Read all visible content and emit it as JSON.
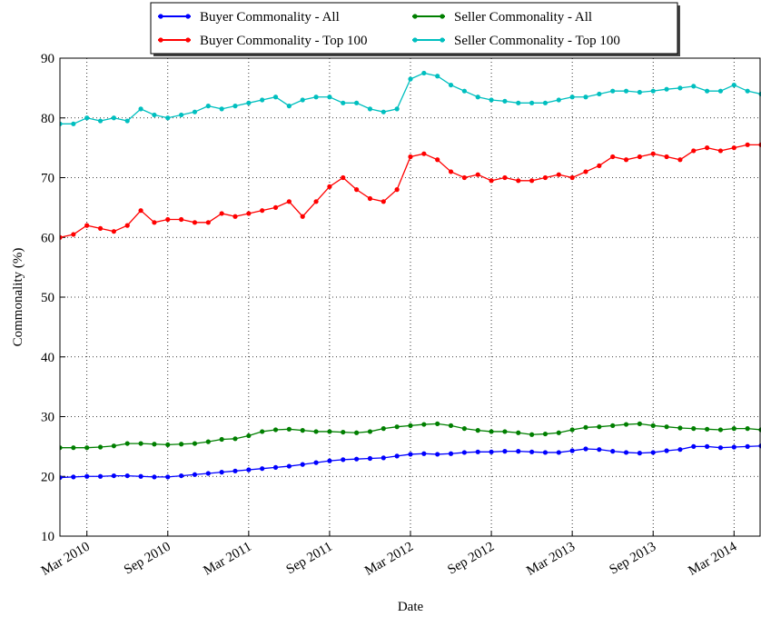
{
  "chart_data": {
    "type": "line",
    "xlabel": "Date",
    "ylabel": "Commonality (%)",
    "x": [
      "2010-01",
      "2010-02",
      "2010-03",
      "2010-04",
      "2010-05",
      "2010-06",
      "2010-07",
      "2010-08",
      "2010-09",
      "2010-10",
      "2010-11",
      "2010-12",
      "2011-01",
      "2011-02",
      "2011-03",
      "2011-04",
      "2011-05",
      "2011-06",
      "2011-07",
      "2011-08",
      "2011-09",
      "2011-10",
      "2011-11",
      "2011-12",
      "2012-01",
      "2012-02",
      "2012-03",
      "2012-04",
      "2012-05",
      "2012-06",
      "2012-07",
      "2012-08",
      "2012-09",
      "2012-10",
      "2012-11",
      "2012-12",
      "2013-01",
      "2013-02",
      "2013-03",
      "2013-04",
      "2013-05",
      "2013-06",
      "2013-07",
      "2013-08",
      "2013-09",
      "2013-10",
      "2013-11",
      "2013-12",
      "2014-01",
      "2014-02",
      "2014-03",
      "2014-04",
      "2014-05"
    ],
    "series": [
      {
        "name": "Buyer Commonality - All",
        "color": "#0000ff",
        "values": [
          19.8,
          19.9,
          20,
          20,
          20.1,
          20.1,
          20,
          19.9,
          19.9,
          20.1,
          20.3,
          20.5,
          20.7,
          20.9,
          21.1,
          21.3,
          21.5,
          21.7,
          22,
          22.3,
          22.6,
          22.8,
          22.9,
          23,
          23.1,
          23.4,
          23.7,
          23.8,
          23.7,
          23.8,
          24,
          24.1,
          24.1,
          24.2,
          24.2,
          24.1,
          24,
          24,
          24.3,
          24.6,
          24.5,
          24.2,
          24,
          23.9,
          24,
          24.3,
          24.5,
          25,
          25,
          24.8,
          24.9,
          25,
          25.1
        ]
      },
      {
        "name": "Buyer Commonality - Top 100",
        "color": "#ff0000",
        "values": [
          60,
          60.5,
          62,
          61.5,
          61,
          62,
          64.5,
          62.5,
          63,
          63,
          62.5,
          62.5,
          64,
          63.5,
          64,
          64.5,
          65,
          66,
          63.5,
          66,
          68.5,
          70,
          68,
          66.5,
          66,
          68,
          73.5,
          74,
          73,
          71,
          70,
          70.5,
          69.5,
          70,
          69.5,
          69.5,
          70,
          70.5,
          70,
          71,
          72,
          73.5,
          73,
          73.5,
          74,
          73.5,
          73,
          74.5,
          75,
          74.5,
          75,
          75.5,
          75.5
        ]
      },
      {
        "name": "Seller Commonality - All",
        "color": "#007f00",
        "values": [
          24.8,
          24.8,
          24.8,
          24.9,
          25.1,
          25.5,
          25.5,
          25.4,
          25.3,
          25.4,
          25.5,
          25.8,
          26.2,
          26.3,
          26.8,
          27.5,
          27.8,
          27.9,
          27.7,
          27.5,
          27.5,
          27.4,
          27.3,
          27.5,
          28,
          28.3,
          28.5,
          28.7,
          28.8,
          28.5,
          28,
          27.7,
          27.5,
          27.5,
          27.3,
          27,
          27.1,
          27.3,
          27.8,
          28.2,
          28.3,
          28.5,
          28.7,
          28.8,
          28.5,
          28.3,
          28.1,
          28,
          27.9,
          27.8,
          28,
          28,
          27.8
        ]
      },
      {
        "name": "Seller Commonality - Top 100",
        "color": "#00bfbf",
        "values": [
          79,
          79,
          80,
          79.5,
          80,
          79.5,
          81.5,
          80.5,
          80,
          80.5,
          81,
          82,
          81.5,
          82,
          82.5,
          83,
          83.5,
          82,
          83,
          83.5,
          83.5,
          82.5,
          82.5,
          81.5,
          81,
          81.5,
          86.5,
          87.5,
          87,
          85.5,
          84.5,
          83.5,
          83,
          82.8,
          82.5,
          82.5,
          82.5,
          83,
          83.5,
          83.5,
          84,
          84.5,
          84.5,
          84.3,
          84.5,
          84.8,
          85,
          85.3,
          84.5,
          84.5,
          85.5,
          84.5,
          84
        ]
      }
    ],
    "xlim": [
      "2010-01",
      "2014-05"
    ],
    "xticks": [
      {
        "value": "2010-03",
        "label": "Mar 2010"
      },
      {
        "value": "2010-09",
        "label": "Sep 2010"
      },
      {
        "value": "2011-03",
        "label": "Mar 2011"
      },
      {
        "value": "2011-09",
        "label": "Sep 2011"
      },
      {
        "value": "2012-03",
        "label": "Mar 2012"
      },
      {
        "value": "2012-09",
        "label": "Sep 2012"
      },
      {
        "value": "2013-03",
        "label": "Mar 2013"
      },
      {
        "value": "2013-09",
        "label": "Sep 2013"
      },
      {
        "value": "2014-03",
        "label": "Mar 2014"
      }
    ],
    "ylim": [
      10,
      90
    ],
    "yticks": [
      10,
      20,
      30,
      40,
      50,
      60,
      70,
      80,
      90
    ],
    "grid": true,
    "legend": "top"
  }
}
